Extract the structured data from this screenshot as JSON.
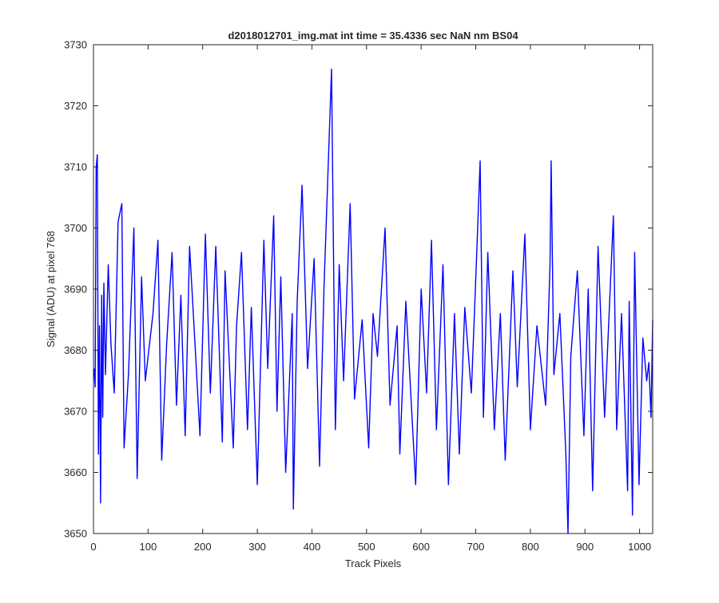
{
  "chart_data": {
    "type": "line",
    "title": "d2018012701_img.mat int time = 35.4336 sec  NaN nm BS04",
    "xlabel": "Track Pixels",
    "ylabel": "Signal (ADU) at pixel 768",
    "xlim": [
      0,
      1024
    ],
    "ylim": [
      3650,
      3730
    ],
    "xticks": [
      0,
      100,
      200,
      300,
      400,
      500,
      600,
      700,
      800,
      900,
      1000
    ],
    "yticks": [
      3650,
      3660,
      3670,
      3680,
      3690,
      3700,
      3710,
      3720,
      3730
    ],
    "grid": false,
    "line_color": "#0000ff",
    "series": [
      {
        "x": [
          1,
          3,
          5,
          7,
          9,
          11,
          13,
          15,
          17,
          19,
          22,
          27,
          32,
          38,
          45,
          52,
          56,
          64,
          74,
          80,
          88,
          95,
          109,
          118,
          125,
          134,
          144,
          152,
          160,
          168,
          176,
          186,
          195,
          205,
          214,
          224,
          236,
          241,
          256,
          262,
          271,
          282,
          289,
          300,
          312,
          319,
          330,
          336,
          343,
          352,
          364,
          366,
          373,
          382,
          392,
          404,
          414,
          422,
          436,
          443,
          450,
          458,
          470,
          478,
          492,
          504,
          512,
          520,
          534,
          543,
          556,
          561,
          572,
          590,
          600,
          610,
          619,
          628,
          640,
          650,
          661,
          670,
          680,
          692,
          701,
          708,
          714,
          722,
          734,
          745,
          754,
          768,
          776,
          790,
          800,
          812,
          828,
          836,
          838,
          843,
          854,
          865,
          869,
          874,
          886,
          898,
          906,
          914,
          924,
          936,
          952,
          958,
          967,
          978,
          981,
          987,
          991,
          999,
          1006,
          1013,
          1017,
          1021,
          1024
        ],
        "y": [
          3677,
          3674,
          3710,
          3712,
          3663,
          3684,
          3655,
          3689,
          3669,
          3691,
          3676,
          3694,
          3681,
          3673,
          3701,
          3704,
          3664,
          3676,
          3700,
          3659,
          3692,
          3675,
          3686,
          3698,
          3662,
          3681,
          3696,
          3671,
          3689,
          3666,
          3697,
          3681,
          3666,
          3699,
          3673,
          3697,
          3665,
          3693,
          3664,
          3684,
          3696,
          3667,
          3687,
          3658,
          3698,
          3677,
          3702,
          3670,
          3692,
          3660,
          3686,
          3654,
          3688,
          3707,
          3677,
          3695,
          3661,
          3690,
          3726,
          3667,
          3694,
          3675,
          3704,
          3672,
          3685,
          3664,
          3686,
          3679,
          3700,
          3671,
          3684,
          3663,
          3688,
          3658,
          3690,
          3673,
          3698,
          3667,
          3694,
          3658,
          3686,
          3663,
          3687,
          3673,
          3694,
          3711,
          3669,
          3696,
          3667,
          3686,
          3662,
          3693,
          3674,
          3699,
          3667,
          3684,
          3671,
          3694,
          3711,
          3676,
          3686,
          3663,
          3650,
          3679,
          3693,
          3666,
          3690,
          3657,
          3697,
          3669,
          3702,
          3667,
          3686,
          3657,
          3688,
          3653,
          3696,
          3658,
          3682,
          3675,
          3678,
          3669,
          3685
        ]
      }
    ]
  }
}
